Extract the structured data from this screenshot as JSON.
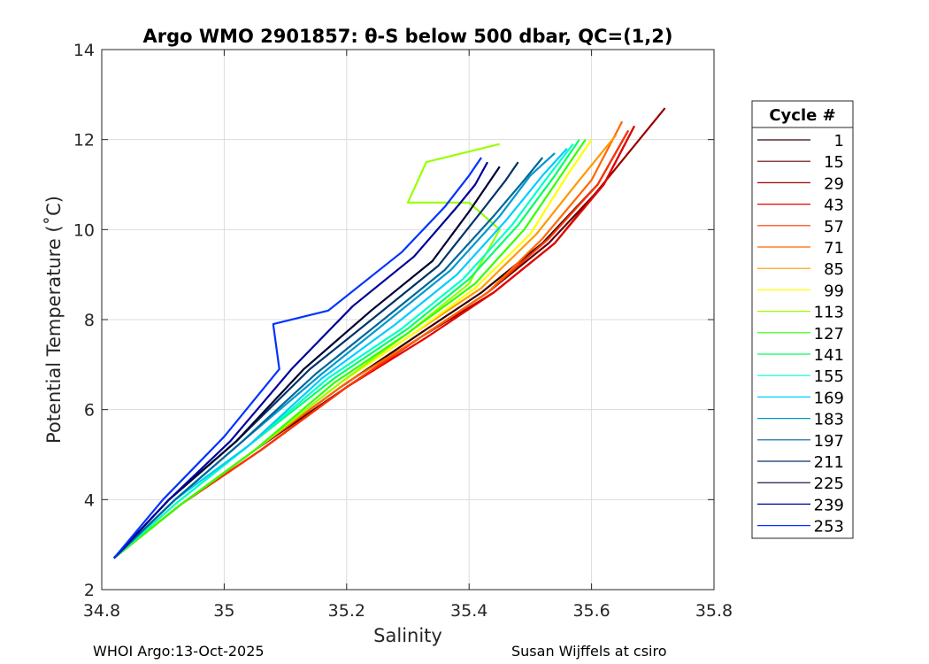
{
  "chart_data": {
    "type": "line",
    "title": "Argo WMO 2901857: θ-S below 500 dbar,  QC=(1,2)",
    "xlabel": "Salinity",
    "ylabel": "Potential Temperature (˚C)",
    "xlim": [
      34.8,
      35.8
    ],
    "ylim": [
      2,
      14
    ],
    "xticks": [
      "34.8",
      "35",
      "35.2",
      "35.4",
      "35.6",
      "35.8"
    ],
    "yticks": [
      "2",
      "4",
      "6",
      "8",
      "10",
      "12",
      "14"
    ],
    "grid": true,
    "legend_title": "Cycle #",
    "legend_position": "outside-right",
    "series": [
      {
        "name": "1",
        "color": "#330000",
        "x": [
          34.82,
          34.93,
          35.05,
          35.19,
          35.31,
          35.42,
          35.52,
          35.61,
          35.66
        ],
        "y": [
          2.7,
          3.9,
          5.1,
          6.5,
          7.6,
          8.6,
          9.7,
          11.0,
          12.2
        ]
      },
      {
        "name": "15",
        "color": "#660000",
        "x": [
          34.82,
          34.93,
          35.05,
          35.2,
          35.32,
          35.43,
          35.53,
          35.62,
          35.67
        ],
        "y": [
          2.7,
          3.9,
          5.1,
          6.5,
          7.6,
          8.6,
          9.7,
          11.0,
          12.3
        ]
      },
      {
        "name": "29",
        "color": "#990000",
        "x": [
          34.82,
          34.93,
          35.06,
          35.2,
          35.32,
          35.44,
          35.54,
          35.63,
          35.72
        ],
        "y": [
          2.7,
          3.9,
          5.1,
          6.5,
          7.6,
          8.6,
          9.7,
          11.2,
          12.7
        ]
      },
      {
        "name": "43",
        "color": "#e60000",
        "x": [
          34.82,
          34.93,
          35.06,
          35.2,
          35.33,
          35.44,
          35.54,
          35.62,
          35.67
        ],
        "y": [
          2.7,
          3.9,
          5.1,
          6.5,
          7.6,
          8.6,
          9.7,
          11.0,
          12.3
        ]
      },
      {
        "name": "57",
        "color": "#ff3300",
        "x": [
          34.82,
          34.93,
          35.06,
          35.2,
          35.32,
          35.43,
          35.53,
          35.61,
          35.66
        ],
        "y": [
          2.7,
          3.9,
          5.1,
          6.5,
          7.6,
          8.6,
          9.8,
          11.0,
          12.2
        ]
      },
      {
        "name": "71",
        "color": "#ff6600",
        "x": [
          34.82,
          34.93,
          35.05,
          35.2,
          35.32,
          35.43,
          35.52,
          35.6,
          35.65
        ],
        "y": [
          2.7,
          3.9,
          5.1,
          6.6,
          7.6,
          8.6,
          9.8,
          11.1,
          12.4
        ]
      },
      {
        "name": "85",
        "color": "#ff9900",
        "x": [
          34.82,
          34.93,
          35.05,
          35.19,
          35.31,
          35.42,
          35.51,
          35.58,
          35.64
        ],
        "y": [
          2.7,
          3.9,
          5.1,
          6.6,
          7.7,
          8.7,
          9.9,
          11.1,
          12.1
        ]
      },
      {
        "name": "99",
        "color": "#ffff00",
        "x": [
          34.82,
          34.93,
          35.05,
          35.19,
          35.31,
          35.41,
          35.5,
          35.56,
          35.6
        ],
        "y": [
          2.7,
          3.9,
          5.1,
          6.6,
          7.7,
          8.7,
          9.9,
          11.2,
          12.0
        ]
      },
      {
        "name": "113",
        "color": "#99ff00",
        "x": [
          34.82,
          34.93,
          35.05,
          35.19,
          35.3,
          35.4,
          35.45,
          35.4,
          35.3,
          35.33,
          35.45
        ],
        "y": [
          2.7,
          3.9,
          5.1,
          6.6,
          7.7,
          8.8,
          10.0,
          10.6,
          10.6,
          11.5,
          11.9
        ]
      },
      {
        "name": "127",
        "color": "#33ff00",
        "x": [
          34.82,
          34.93,
          35.05,
          35.18,
          35.3,
          35.41,
          35.49,
          35.55,
          35.59
        ],
        "y": [
          2.7,
          3.9,
          5.1,
          6.6,
          7.7,
          8.8,
          10.0,
          11.2,
          12.0
        ]
      },
      {
        "name": "141",
        "color": "#00ff66",
        "x": [
          34.82,
          34.92,
          35.04,
          35.18,
          35.3,
          35.4,
          35.48,
          35.54,
          35.58
        ],
        "y": [
          2.7,
          3.9,
          5.2,
          6.7,
          7.8,
          8.9,
          10.1,
          11.2,
          12.0
        ]
      },
      {
        "name": "155",
        "color": "#00ffcc",
        "x": [
          34.82,
          34.92,
          35.04,
          35.17,
          35.29,
          35.39,
          35.47,
          35.53,
          35.57
        ],
        "y": [
          2.7,
          3.9,
          5.2,
          6.7,
          7.8,
          8.9,
          10.1,
          11.2,
          11.9
        ]
      },
      {
        "name": "169",
        "color": "#00ccff",
        "x": [
          34.82,
          34.92,
          35.04,
          35.16,
          35.28,
          35.38,
          35.46,
          35.52,
          35.56
        ],
        "y": [
          2.7,
          4.0,
          5.2,
          6.7,
          7.9,
          9.0,
          10.2,
          11.2,
          11.8
        ]
      },
      {
        "name": "183",
        "color": "#0099cc",
        "x": [
          34.82,
          34.92,
          35.03,
          35.16,
          35.27,
          35.37,
          35.45,
          35.5,
          35.54
        ],
        "y": [
          2.7,
          4.0,
          5.3,
          6.8,
          8.0,
          9.1,
          10.3,
          11.2,
          11.7
        ]
      },
      {
        "name": "197",
        "color": "#006699",
        "x": [
          34.82,
          34.92,
          35.03,
          35.15,
          35.26,
          35.36,
          35.44,
          35.49,
          35.52
        ],
        "y": [
          2.7,
          4.0,
          5.3,
          6.8,
          8.0,
          9.1,
          10.3,
          11.1,
          11.6
        ]
      },
      {
        "name": "211",
        "color": "#003366",
        "x": [
          34.82,
          34.91,
          35.02,
          35.14,
          35.25,
          35.35,
          35.42,
          35.46,
          35.48
        ],
        "y": [
          2.7,
          4.0,
          5.3,
          6.9,
          8.1,
          9.2,
          10.4,
          11.1,
          11.5
        ]
      },
      {
        "name": "225",
        "color": "#000033",
        "x": [
          34.82,
          34.91,
          35.02,
          35.13,
          35.24,
          35.34,
          35.4,
          35.43,
          35.45
        ],
        "y": [
          2.7,
          4.0,
          5.3,
          6.9,
          8.2,
          9.3,
          10.4,
          11.0,
          11.4
        ]
      },
      {
        "name": "239",
        "color": "#000099",
        "x": [
          34.82,
          34.91,
          35.01,
          35.11,
          35.21,
          35.31,
          35.38,
          35.41,
          35.43
        ],
        "y": [
          2.7,
          4.0,
          5.3,
          6.9,
          8.3,
          9.4,
          10.5,
          11.0,
          11.5
        ]
      },
      {
        "name": "253",
        "color": "#0033ff",
        "x": [
          34.82,
          34.9,
          35.0,
          35.09,
          35.08,
          35.17,
          35.29,
          35.36,
          35.4,
          35.42
        ],
        "y": [
          2.7,
          4.0,
          5.4,
          6.9,
          7.9,
          8.2,
          9.5,
          10.5,
          11.2,
          11.6
        ]
      }
    ]
  },
  "footer": {
    "left": "WHOI Argo:13-Oct-2025",
    "right": "Susan Wijffels at csiro"
  }
}
